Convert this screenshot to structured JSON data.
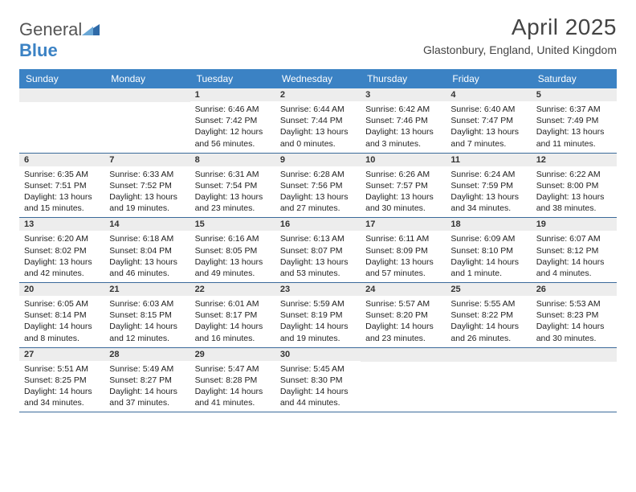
{
  "logo": {
    "text1": "General",
    "text2": "Blue"
  },
  "header": {
    "month_title": "April 2025",
    "location": "Glastonbury, England, United Kingdom"
  },
  "columns": [
    "Sunday",
    "Monday",
    "Tuesday",
    "Wednesday",
    "Thursday",
    "Friday",
    "Saturday"
  ],
  "colors": {
    "header_bg": "#3b82c4",
    "row_divider": "#3b6a9a",
    "daynum_bg": "#ededed"
  },
  "weeks": [
    [
      {
        "empty": true
      },
      {
        "empty": true
      },
      {
        "day": "1",
        "sunrise": "Sunrise: 6:46 AM",
        "sunset": "Sunset: 7:42 PM",
        "daylight": "Daylight: 12 hours and 56 minutes."
      },
      {
        "day": "2",
        "sunrise": "Sunrise: 6:44 AM",
        "sunset": "Sunset: 7:44 PM",
        "daylight": "Daylight: 13 hours and 0 minutes."
      },
      {
        "day": "3",
        "sunrise": "Sunrise: 6:42 AM",
        "sunset": "Sunset: 7:46 PM",
        "daylight": "Daylight: 13 hours and 3 minutes."
      },
      {
        "day": "4",
        "sunrise": "Sunrise: 6:40 AM",
        "sunset": "Sunset: 7:47 PM",
        "daylight": "Daylight: 13 hours and 7 minutes."
      },
      {
        "day": "5",
        "sunrise": "Sunrise: 6:37 AM",
        "sunset": "Sunset: 7:49 PM",
        "daylight": "Daylight: 13 hours and 11 minutes."
      }
    ],
    [
      {
        "day": "6",
        "sunrise": "Sunrise: 6:35 AM",
        "sunset": "Sunset: 7:51 PM",
        "daylight": "Daylight: 13 hours and 15 minutes."
      },
      {
        "day": "7",
        "sunrise": "Sunrise: 6:33 AM",
        "sunset": "Sunset: 7:52 PM",
        "daylight": "Daylight: 13 hours and 19 minutes."
      },
      {
        "day": "8",
        "sunrise": "Sunrise: 6:31 AM",
        "sunset": "Sunset: 7:54 PM",
        "daylight": "Daylight: 13 hours and 23 minutes."
      },
      {
        "day": "9",
        "sunrise": "Sunrise: 6:28 AM",
        "sunset": "Sunset: 7:56 PM",
        "daylight": "Daylight: 13 hours and 27 minutes."
      },
      {
        "day": "10",
        "sunrise": "Sunrise: 6:26 AM",
        "sunset": "Sunset: 7:57 PM",
        "daylight": "Daylight: 13 hours and 30 minutes."
      },
      {
        "day": "11",
        "sunrise": "Sunrise: 6:24 AM",
        "sunset": "Sunset: 7:59 PM",
        "daylight": "Daylight: 13 hours and 34 minutes."
      },
      {
        "day": "12",
        "sunrise": "Sunrise: 6:22 AM",
        "sunset": "Sunset: 8:00 PM",
        "daylight": "Daylight: 13 hours and 38 minutes."
      }
    ],
    [
      {
        "day": "13",
        "sunrise": "Sunrise: 6:20 AM",
        "sunset": "Sunset: 8:02 PM",
        "daylight": "Daylight: 13 hours and 42 minutes."
      },
      {
        "day": "14",
        "sunrise": "Sunrise: 6:18 AM",
        "sunset": "Sunset: 8:04 PM",
        "daylight": "Daylight: 13 hours and 46 minutes."
      },
      {
        "day": "15",
        "sunrise": "Sunrise: 6:16 AM",
        "sunset": "Sunset: 8:05 PM",
        "daylight": "Daylight: 13 hours and 49 minutes."
      },
      {
        "day": "16",
        "sunrise": "Sunrise: 6:13 AM",
        "sunset": "Sunset: 8:07 PM",
        "daylight": "Daylight: 13 hours and 53 minutes."
      },
      {
        "day": "17",
        "sunrise": "Sunrise: 6:11 AM",
        "sunset": "Sunset: 8:09 PM",
        "daylight": "Daylight: 13 hours and 57 minutes."
      },
      {
        "day": "18",
        "sunrise": "Sunrise: 6:09 AM",
        "sunset": "Sunset: 8:10 PM",
        "daylight": "Daylight: 14 hours and 1 minute."
      },
      {
        "day": "19",
        "sunrise": "Sunrise: 6:07 AM",
        "sunset": "Sunset: 8:12 PM",
        "daylight": "Daylight: 14 hours and 4 minutes."
      }
    ],
    [
      {
        "day": "20",
        "sunrise": "Sunrise: 6:05 AM",
        "sunset": "Sunset: 8:14 PM",
        "daylight": "Daylight: 14 hours and 8 minutes."
      },
      {
        "day": "21",
        "sunrise": "Sunrise: 6:03 AM",
        "sunset": "Sunset: 8:15 PM",
        "daylight": "Daylight: 14 hours and 12 minutes."
      },
      {
        "day": "22",
        "sunrise": "Sunrise: 6:01 AM",
        "sunset": "Sunset: 8:17 PM",
        "daylight": "Daylight: 14 hours and 16 minutes."
      },
      {
        "day": "23",
        "sunrise": "Sunrise: 5:59 AM",
        "sunset": "Sunset: 8:19 PM",
        "daylight": "Daylight: 14 hours and 19 minutes."
      },
      {
        "day": "24",
        "sunrise": "Sunrise: 5:57 AM",
        "sunset": "Sunset: 8:20 PM",
        "daylight": "Daylight: 14 hours and 23 minutes."
      },
      {
        "day": "25",
        "sunrise": "Sunrise: 5:55 AM",
        "sunset": "Sunset: 8:22 PM",
        "daylight": "Daylight: 14 hours and 26 minutes."
      },
      {
        "day": "26",
        "sunrise": "Sunrise: 5:53 AM",
        "sunset": "Sunset: 8:23 PM",
        "daylight": "Daylight: 14 hours and 30 minutes."
      }
    ],
    [
      {
        "day": "27",
        "sunrise": "Sunrise: 5:51 AM",
        "sunset": "Sunset: 8:25 PM",
        "daylight": "Daylight: 14 hours and 34 minutes."
      },
      {
        "day": "28",
        "sunrise": "Sunrise: 5:49 AM",
        "sunset": "Sunset: 8:27 PM",
        "daylight": "Daylight: 14 hours and 37 minutes."
      },
      {
        "day": "29",
        "sunrise": "Sunrise: 5:47 AM",
        "sunset": "Sunset: 8:28 PM",
        "daylight": "Daylight: 14 hours and 41 minutes."
      },
      {
        "day": "30",
        "sunrise": "Sunrise: 5:45 AM",
        "sunset": "Sunset: 8:30 PM",
        "daylight": "Daylight: 14 hours and 44 minutes."
      },
      {
        "empty": true
      },
      {
        "empty": true
      },
      {
        "empty": true
      }
    ]
  ]
}
